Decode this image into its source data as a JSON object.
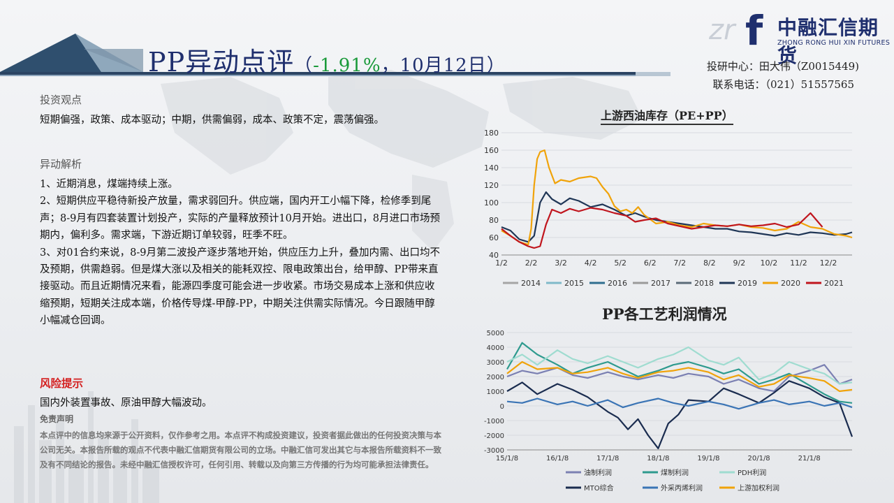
{
  "header": {
    "title_main": "PP异动点评",
    "title_open": "（",
    "title_pct": "-1.91%",
    "title_rest": "，10月12日）",
    "logo_cn": "中融汇信期货",
    "logo_en": "ZHONG RONG HUI XIN FUTURES",
    "logo_mark": "f",
    "logo_watermark": "zr",
    "contact_line1": "投研中心：田大伟（Z0015449)",
    "contact_line2": "联系电话：（021）51557565"
  },
  "left": {
    "view_heading": "投资观点",
    "view_text": "短期偏强，政策、成本驱动；中期，供需偏弱，成本、政策不定，震荡偏强。",
    "analysis_heading": "异动解析",
    "analysis_items": [
      "1、近期消息，煤端持续上涨。",
      "2、短期供应平稳待新投产放量，需求弱回升。供应端，国内开工小幅下降，检修季到尾声；8-9月有四套装置计划投产，实际的产量释放预计10月开始。进出口，8月进口市场预期内，偏利多。需求端，下游近期订单较弱，旺季不旺。",
      "3、对01合约来说，8-9月第二波投产逐步落地开始，供应压力上升，叠加内需、出口均不及预期，供需趋弱。但是煤大涨以及相关的能耗双控、限电政策出台，给甲醇、PP带来直接驱动。而且近期情况来看，能源四季度可能会进一步收紧。市场交易成本上涨和供应收缩预期，短期关注成本端，价格传导煤-甲醇-PP，中期关注供需实际情况。今日跟随甲醇小幅减仓回调。"
    ],
    "risk_heading": "风险提示",
    "risk_text": "国内外装置事故、原油甲醇大幅波动。",
    "disclaimer_heading": "免责声明",
    "disclaimer_text": "本点评中的信息均来源于公开资料，仅作参考之用。本点评不构成投资建议，投资者据此做出的任何投资决策与本公司无关。本报告所载的观点不代表中融汇信期货有限公司的立场。中融汇信可发出其它与本报告所载资料不一致及有不同结论的报告。未经中融汇信授权许可，任何引用、转载以及向第三方传播的行为均可能承担法律责任。"
  },
  "colors": {
    "title": "#1f2f6e",
    "pct_green": "#1a9a3a",
    "risk_red": "#d42020"
  },
  "chart_data": [
    {
      "type": "line",
      "title": "上游西油库存（PE+PP）",
      "ylim": [
        40,
        180
      ],
      "yticks": [
        "180",
        "160",
        "140",
        "120",
        "100",
        "80",
        "60",
        "40"
      ],
      "xticks": [
        "1/2",
        "2/2",
        "3/2",
        "4/2",
        "5/2",
        "6/2",
        "7/2",
        "8/2",
        "9/2",
        "10/2",
        "11/2",
        "12/2"
      ],
      "legend_position": "bottom",
      "series": [
        {
          "name": "2014",
          "color": "#a5a5a5",
          "x": [
            0,
            11.8
          ],
          "y": [
            null,
            null
          ]
        },
        {
          "name": "2015",
          "color": "#7fb9c9",
          "x": [
            0,
            11.8
          ],
          "y": [
            null,
            null
          ]
        },
        {
          "name": "2016",
          "color": "#2f6e8f",
          "x": [
            0,
            11.8
          ],
          "y": [
            null,
            null
          ]
        },
        {
          "name": "2017",
          "color": "#9a9a9a",
          "x": [
            0,
            11.8
          ],
          "y": [
            null,
            null
          ]
        },
        {
          "name": "2018",
          "color": "#5a6a78",
          "x": [
            0,
            11.8
          ],
          "y": [
            null,
            null
          ]
        },
        {
          "name": "2019",
          "color": "#1f3656",
          "x": [
            0,
            0.3,
            0.6,
            0.9,
            1.1,
            1.3,
            1.5,
            1.7,
            2.0,
            2.3,
            2.6,
            3.0,
            3.4,
            3.8,
            4.2,
            4.5,
            4.8,
            5.2,
            5.6,
            6.0,
            6.4,
            6.8,
            7.2,
            7.6,
            8.0,
            8.4,
            8.8,
            9.2,
            9.6,
            10.0,
            10.4,
            10.8,
            11.2,
            11.6,
            11.8
          ],
          "y": [
            72,
            68,
            58,
            55,
            62,
            100,
            112,
            104,
            98,
            105,
            102,
            95,
            98,
            92,
            85,
            88,
            84,
            80,
            78,
            76,
            74,
            72,
            70,
            70,
            67,
            66,
            64,
            62,
            65,
            63,
            66,
            65,
            63,
            64,
            66
          ]
        },
        {
          "name": "2020",
          "color": "#f0a30a",
          "x": [
            0,
            0.3,
            0.6,
            0.9,
            1.0,
            1.1,
            1.2,
            1.3,
            1.45,
            1.6,
            1.8,
            2.0,
            2.3,
            2.6,
            3.0,
            3.2,
            3.4,
            3.6,
            3.8,
            4.0,
            4.2,
            4.4,
            4.6,
            4.8,
            5.2,
            5.6,
            6.0,
            6.4,
            6.8,
            7.2,
            7.6,
            8.0,
            8.4,
            8.8,
            9.2,
            9.6,
            10.0,
            10.4,
            10.8,
            11.2,
            11.6,
            11.8
          ],
          "y": [
            68,
            62,
            55,
            52,
            70,
            120,
            150,
            158,
            160,
            140,
            122,
            126,
            124,
            128,
            130,
            128,
            118,
            110,
            96,
            90,
            92,
            88,
            95,
            86,
            76,
            78,
            74,
            72,
            76,
            74,
            73,
            75,
            72,
            71,
            68,
            70,
            78,
            72,
            70,
            64,
            62,
            60
          ]
        },
        {
          "name": "2021",
          "color": "#c0151d",
          "x": [
            0,
            0.3,
            0.6,
            0.9,
            1.1,
            1.3,
            1.5,
            1.7,
            2.0,
            2.3,
            2.6,
            3.0,
            3.4,
            3.8,
            4.2,
            4.5,
            4.8,
            5.2,
            5.6,
            6.0,
            6.4,
            6.8,
            7.2,
            7.6,
            8.0,
            8.4,
            8.8,
            9.2,
            9.6,
            10.0,
            10.4,
            10.8
          ],
          "y": [
            70,
            62,
            55,
            50,
            48,
            50,
            75,
            92,
            88,
            93,
            90,
            94,
            92,
            88,
            85,
            78,
            80,
            82,
            76,
            73,
            70,
            72,
            74,
            73,
            75,
            73,
            74,
            76,
            72,
            75,
            88,
            72
          ]
        }
      ]
    },
    {
      "type": "line",
      "title": "PP各工艺利润情况",
      "ylim": [
        -3000,
        5000
      ],
      "yticks": [
        "5000",
        "4000",
        "3000",
        "2000",
        "1000",
        "0",
        "-1000",
        "-2000",
        "-3000"
      ],
      "xticks": [
        "15/1/8",
        "16/1/8",
        "17/1/8",
        "18/1/8",
        "19/1/8",
        "20/1/8",
        "21/1/8"
      ],
      "legend_position": "bottom",
      "series": [
        {
          "name": "油制利润",
          "color": "#7b80b2",
          "x": [
            0,
            0.3,
            0.6,
            1.0,
            1.3,
            1.6,
            2.0,
            2.3,
            2.6,
            3.0,
            3.3,
            3.6,
            4.0,
            4.3,
            4.6,
            5.0,
            5.3,
            5.6,
            6.0,
            6.3,
            6.6,
            6.85
          ],
          "y": [
            2000,
            2400,
            2200,
            2600,
            2100,
            1900,
            2300,
            2000,
            1800,
            2100,
            1900,
            2200,
            2000,
            1500,
            1800,
            1200,
            1000,
            2000,
            2400,
            2800,
            1500,
            1800
          ]
        },
        {
          "name": "煤制利润",
          "color": "#2e9a8e",
          "x": [
            0,
            0.3,
            0.6,
            1.0,
            1.3,
            1.6,
            2.0,
            2.3,
            2.6,
            3.0,
            3.3,
            3.6,
            4.0,
            4.3,
            4.6,
            5.0,
            5.3,
            5.6,
            6.0,
            6.3,
            6.6,
            6.85
          ],
          "y": [
            2500,
            4300,
            3500,
            2800,
            2200,
            2600,
            3000,
            2500,
            2000,
            2400,
            2800,
            3000,
            2600,
            2200,
            2500,
            1500,
            1800,
            2200,
            1400,
            800,
            300,
            200
          ]
        },
        {
          "name": "PDH利润",
          "color": "#9fdcd0",
          "x": [
            0,
            0.3,
            0.6,
            1.0,
            1.3,
            1.6,
            2.0,
            2.3,
            2.6,
            3.0,
            3.3,
            3.6,
            4.0,
            4.3,
            4.6,
            5.0,
            5.3,
            5.6,
            6.0,
            6.3,
            6.6,
            6.85
          ],
          "y": [
            3000,
            3500,
            2800,
            3800,
            3200,
            2900,
            3400,
            3000,
            2600,
            3200,
            3500,
            4000,
            3100,
            2800,
            3300,
            1800,
            2200,
            3000,
            2500,
            2200,
            1500,
            1600
          ]
        },
        {
          "name": "MTO综合",
          "color": "#1a2c4f",
          "x": [
            0,
            0.3,
            0.6,
            1.0,
            1.3,
            1.6,
            2.0,
            2.2,
            2.4,
            2.6,
            2.8,
            3.0,
            3.2,
            3.4,
            3.6,
            4.0,
            4.3,
            4.6,
            5.0,
            5.3,
            5.6,
            6.0,
            6.3,
            6.6,
            6.85
          ],
          "y": [
            1000,
            1600,
            800,
            1500,
            1100,
            600,
            -400,
            -800,
            -1600,
            -900,
            -2000,
            -2900,
            -1200,
            -600,
            400,
            300,
            1200,
            800,
            200,
            900,
            1700,
            1200,
            600,
            200,
            -2100
          ]
        },
        {
          "name": "外采丙烯利润",
          "color": "#3a74b5",
          "x": [
            0,
            0.3,
            0.6,
            1.0,
            1.3,
            1.6,
            2.0,
            2.3,
            2.6,
            3.0,
            3.3,
            3.6,
            4.0,
            4.3,
            4.6,
            5.0,
            5.3,
            5.6,
            6.0,
            6.3,
            6.6,
            6.85
          ],
          "y": [
            300,
            200,
            500,
            100,
            300,
            0,
            400,
            -100,
            200,
            500,
            200,
            0,
            300,
            100,
            -200,
            200,
            400,
            100,
            300,
            0,
            200,
            -100
          ]
        },
        {
          "name": "上游加权利润",
          "color": "#f0a30a",
          "x": [
            0,
            0.3,
            0.6,
            1.0,
            1.3,
            1.6,
            2.0,
            2.3,
            2.6,
            3.0,
            3.3,
            3.6,
            4.0,
            4.3,
            4.6,
            5.0,
            5.3,
            5.6,
            6.0,
            6.3,
            6.6,
            6.85
          ],
          "y": [
            2200,
            3000,
            2500,
            2600,
            2200,
            2300,
            2600,
            2200,
            1900,
            2300,
            2400,
            2600,
            2300,
            1800,
            2100,
            1300,
            1500,
            2100,
            1900,
            1700,
            1000,
            1100
          ]
        }
      ]
    }
  ]
}
